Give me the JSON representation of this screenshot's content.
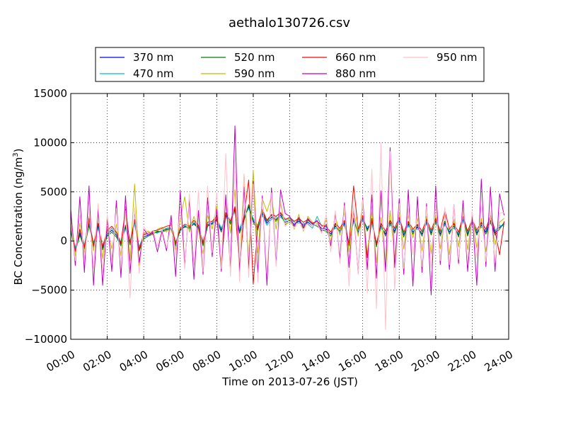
{
  "chart_data": {
    "type": "line",
    "title": "aethalo130726.csv",
    "xlabel": "Time on 2013-07-26 (JST)",
    "ylabel_main": "BC Concentration (ng/m",
    "ylabel_sup": "3",
    "ylabel_close": ")",
    "xlim_hours": [
      0,
      24
    ],
    "ylim": [
      -10000,
      15000
    ],
    "grid": true,
    "legend_placement": "top (above plot)",
    "x_ticks": [
      {
        "hour": 0,
        "label": "00:00"
      },
      {
        "hour": 2,
        "label": "02:00"
      },
      {
        "hour": 4,
        "label": "04:00"
      },
      {
        "hour": 6,
        "label": "06:00"
      },
      {
        "hour": 8,
        "label": "08:00"
      },
      {
        "hour": 10,
        "label": "10:00"
      },
      {
        "hour": 12,
        "label": "12:00"
      },
      {
        "hour": 14,
        "label": "14:00"
      },
      {
        "hour": 16,
        "label": "16:00"
      },
      {
        "hour": 18,
        "label": "18:00"
      },
      {
        "hour": 20,
        "label": "20:00"
      },
      {
        "hour": 22,
        "label": "22:00"
      },
      {
        "hour": 24,
        "label": "24:00"
      }
    ],
    "y_ticks": [
      {
        "value": 15000,
        "label": "15000"
      },
      {
        "value": 10000,
        "label": "10000"
      },
      {
        "value": 5000,
        "label": "5000"
      },
      {
        "value": 0,
        "label": "0"
      },
      {
        "value": -5000,
        "label": "−5000"
      },
      {
        "value": -10000,
        "label": "−10000"
      }
    ],
    "x_hours": [
      0,
      0.25,
      0.5,
      0.75,
      1,
      1.25,
      1.5,
      1.75,
      2,
      2.25,
      2.5,
      2.75,
      3,
      3.25,
      3.5,
      3.75,
      4,
      4.25,
      4.5,
      4.75,
      5,
      5.25,
      5.5,
      5.75,
      6,
      6.25,
      6.5,
      6.75,
      7,
      7.25,
      7.5,
      7.75,
      8,
      8.25,
      8.5,
      8.75,
      9,
      9.25,
      9.5,
      9.75,
      10,
      10.25,
      10.5,
      10.75,
      11,
      11.25,
      11.5,
      11.75,
      12,
      12.25,
      12.5,
      12.75,
      13,
      13.25,
      13.5,
      13.75,
      14,
      14.25,
      14.5,
      14.75,
      15,
      15.25,
      15.5,
      15.75,
      16,
      16.25,
      16.5,
      16.75,
      17,
      17.25,
      17.5,
      17.75,
      18,
      18.25,
      18.5,
      18.75,
      19,
      19.25,
      19.5,
      19.75,
      20,
      20.25,
      20.5,
      20.75,
      21,
      21.25,
      21.5,
      21.75,
      22,
      22.25,
      22.5,
      22.75,
      23,
      23.25,
      23.5,
      23.75
    ],
    "series": [
      {
        "name": "370 nm",
        "color": "#0000ff",
        "values": [
          1200,
          -900,
          800,
          -600,
          1800,
          -400,
          1500,
          -700,
          700,
          1100,
          600,
          -300,
          1400,
          -200,
          1900,
          -800,
          400,
          600,
          800,
          900,
          1000,
          1200,
          1300,
          -300,
          1100,
          1500,
          1300,
          1800,
          1400,
          -300,
          1600,
          1800,
          2200,
          1100,
          2600,
          1800,
          3200,
          1000,
          2300,
          3500,
          2100,
          1300,
          2800,
          1800,
          2400,
          2200,
          2600,
          1900,
          2100,
          1700,
          2000,
          1600,
          1900,
          1500,
          1700,
          1300,
          1200,
          700,
          1500,
          1000,
          1800,
          -300,
          2100,
          900,
          2300,
          1200,
          2000,
          -400,
          1500,
          700,
          1800,
          1000,
          2100,
          600,
          1700,
          900,
          1400,
          700,
          1900,
          800,
          2000,
          700,
          1800,
          900,
          1500,
          600,
          2200,
          700,
          1900,
          800,
          1600,
          900,
          2100,
          800,
          1400,
          1700
        ]
      },
      {
        "name": "470 nm",
        "color": "#00bfbf",
        "values": [
          1400,
          -700,
          1000,
          -400,
          2000,
          -200,
          1300,
          -500,
          900,
          1300,
          800,
          -100,
          1200,
          0,
          1700,
          -600,
          600,
          700,
          900,
          800,
          1100,
          1300,
          1400,
          -100,
          1000,
          1600,
          1200,
          1900,
          1500,
          -100,
          1700,
          1900,
          2300,
          1300,
          2400,
          1900,
          3000,
          1200,
          2500,
          3300,
          2300,
          1500,
          2600,
          1600,
          2200,
          2400,
          2400,
          2100,
          2300,
          1900,
          1800,
          1800,
          1700,
          1300,
          2500,
          1500,
          1400,
          900,
          1300,
          1200,
          1600,
          -100,
          1900,
          1100,
          2100,
          1400,
          1800,
          -200,
          1300,
          900,
          1600,
          1200,
          1900,
          800,
          1500,
          1100,
          1200,
          900,
          1700,
          1000,
          1800,
          900,
          1600,
          1100,
          1300,
          800,
          2000,
          900,
          1700,
          1000,
          1400,
          1100,
          2400,
          1000,
          1600,
          1500
        ]
      },
      {
        "name": "520 nm",
        "color": "#008000",
        "values": [
          1000,
          -1100,
          600,
          -800,
          1600,
          -600,
          1700,
          -900,
          500,
          900,
          400,
          -500,
          1600,
          -400,
          2100,
          -1000,
          200,
          500,
          700,
          1000,
          900,
          1100,
          1200,
          -500,
          1200,
          1400,
          1400,
          1700,
          1300,
          -500,
          1500,
          1700,
          2100,
          900,
          2800,
          1700,
          3400,
          800,
          2100,
          3700,
          1900,
          1100,
          3000,
          2000,
          2600,
          2000,
          2800,
          1700,
          1900,
          1500,
          2200,
          1400,
          2100,
          1700,
          1500,
          1100,
          1000,
          500,
          1700,
          800,
          2000,
          -500,
          2300,
          700,
          2500,
          1000,
          2200,
          -600,
          1700,
          500,
          2000,
          800,
          2300,
          400,
          1900,
          700,
          1600,
          500,
          2100,
          600,
          2200,
          500,
          2000,
          700,
          1700,
          400,
          2400,
          500,
          2100,
          600,
          1800,
          700,
          1900,
          600,
          1200,
          1900
        ]
      },
      {
        "name": "590 nm",
        "color": "#bfbf00",
        "values": [
          3000,
          -1500,
          1800,
          -1200,
          2500,
          -1000,
          2800,
          -1800,
          1500,
          -800,
          1700,
          -1500,
          3500,
          -2000,
          5800,
          -2500,
          800,
          1000,
          600,
          1200,
          1400,
          900,
          1800,
          -900,
          2200,
          4500,
          900,
          2500,
          1100,
          -1300,
          2600,
          1200,
          3600,
          -2200,
          4100,
          800,
          5200,
          -2900,
          6800,
          -2400,
          7200,
          -1200,
          4300,
          3000,
          4500,
          1200,
          3800,
          1500,
          2300,
          1200,
          2700,
          1000,
          2500,
          1900,
          1800,
          900,
          2200,
          -200,
          2600,
          600,
          2900,
          -1100,
          3300,
          500,
          3600,
          -1400,
          3000,
          -2200,
          2400,
          -2800,
          3100,
          -1900,
          2800,
          -800,
          2600,
          300,
          2300,
          -1000,
          2500,
          -1300,
          2700,
          -800,
          2900,
          -1400,
          2200,
          -600,
          2900,
          -900,
          2600,
          -700,
          2300,
          -1100,
          2500,
          -400,
          1900,
          2300
        ]
      },
      {
        "name": "660 nm",
        "color": "#ff0000",
        "values": [
          1600,
          -1000,
          1200,
          -700,
          2300,
          -500,
          1800,
          -600,
          1100,
          1500,
          900,
          -200,
          3200,
          -300,
          2200,
          -900,
          700,
          800,
          1000,
          1100,
          1300,
          1500,
          1600,
          -200,
          1300,
          1700,
          1500,
          2100,
          1600,
          -200,
          1900,
          2000,
          2500,
          -2300,
          2900,
          2000,
          3500,
          -2800,
          2600,
          6200,
          -4400,
          1600,
          3200,
          2100,
          2700,
          2500,
          2900,
          2200,
          2400,
          2000,
          2300,
          1900,
          2200,
          1800,
          2000,
          1600,
          1500,
          900,
          1800,
          1300,
          2100,
          -400,
          5600,
          1200,
          2600,
          -1700,
          2300,
          -300,
          1800,
          1000,
          2100,
          1300,
          2400,
          900,
          2000,
          1200,
          1700,
          1000,
          2200,
          1100,
          2300,
          1000,
          3100,
          1200,
          1800,
          900,
          2500,
          1000,
          2200,
          1100,
          1900,
          1200,
          2600,
          1100,
          -1400,
          2000
        ]
      },
      {
        "name": "880 nm",
        "color": "#bf00bf",
        "values": [
          3200,
          -2500,
          4500,
          -3200,
          5600,
          -4500,
          3300,
          -4500,
          2400,
          -3100,
          4100,
          -3700,
          4600,
          -3300,
          3100,
          -2200,
          1200,
          600,
          900,
          -1100,
          1000,
          -1000,
          2600,
          -3600,
          5100,
          -2600,
          4300,
          -3900,
          3100,
          -3400,
          4400,
          -1600,
          3200,
          -3100,
          4700,
          -2900,
          11700,
          -3600,
          5500,
          -2800,
          6100,
          -3200,
          4600,
          -4500,
          5400,
          -2300,
          5200,
          2800,
          2500,
          1500,
          2400,
          1300,
          2300,
          1700,
          2100,
          1000,
          1700,
          -500,
          2800,
          -1800,
          3900,
          -2700,
          3200,
          -3300,
          4400,
          -2900,
          4700,
          -3800,
          5100,
          -3100,
          9500,
          -2700,
          4300,
          -3400,
          5200,
          -4600,
          4500,
          -3200,
          3800,
          -5500,
          5600,
          -2400,
          3300,
          -2900,
          3700,
          -2300,
          4100,
          -3100,
          2900,
          -4500,
          6300,
          -2600,
          5500,
          -3100,
          4800,
          2600
        ]
      },
      {
        "name": "950 nm",
        "color": "#ffc0cb",
        "values": [
          2100,
          -2000,
          2600,
          -1800,
          3300,
          -2800,
          3800,
          -3200,
          2700,
          -1900,
          3300,
          -2700,
          3100,
          -5800,
          3400,
          -3300,
          1500,
          700,
          1100,
          -500,
          1200,
          -700,
          1600,
          -1400,
          3400,
          -2900,
          4800,
          -2400,
          5100,
          -3100,
          5600,
          -1200,
          4900,
          -2800,
          8900,
          -3600,
          7100,
          -4100,
          6800,
          -3700,
          5800,
          -4200,
          4300,
          -3300,
          4900,
          -2600,
          4200,
          1500,
          2000,
          1300,
          1900,
          1100,
          1800,
          1500,
          1700,
          800,
          2700,
          -1100,
          3100,
          -2300,
          3600,
          -4600,
          3700,
          -3400,
          4200,
          -5300,
          7300,
          -6900,
          10000,
          -9000,
          9100,
          -5000,
          3800,
          -2800,
          3300,
          -1400,
          3100,
          -2600,
          3500,
          -2700,
          3900,
          -2000,
          3400,
          -2400,
          3700,
          -1900,
          3200,
          -2100,
          3000,
          -1800,
          3600,
          -2100,
          3100,
          -2200,
          2800,
          2900
        ]
      }
    ]
  }
}
